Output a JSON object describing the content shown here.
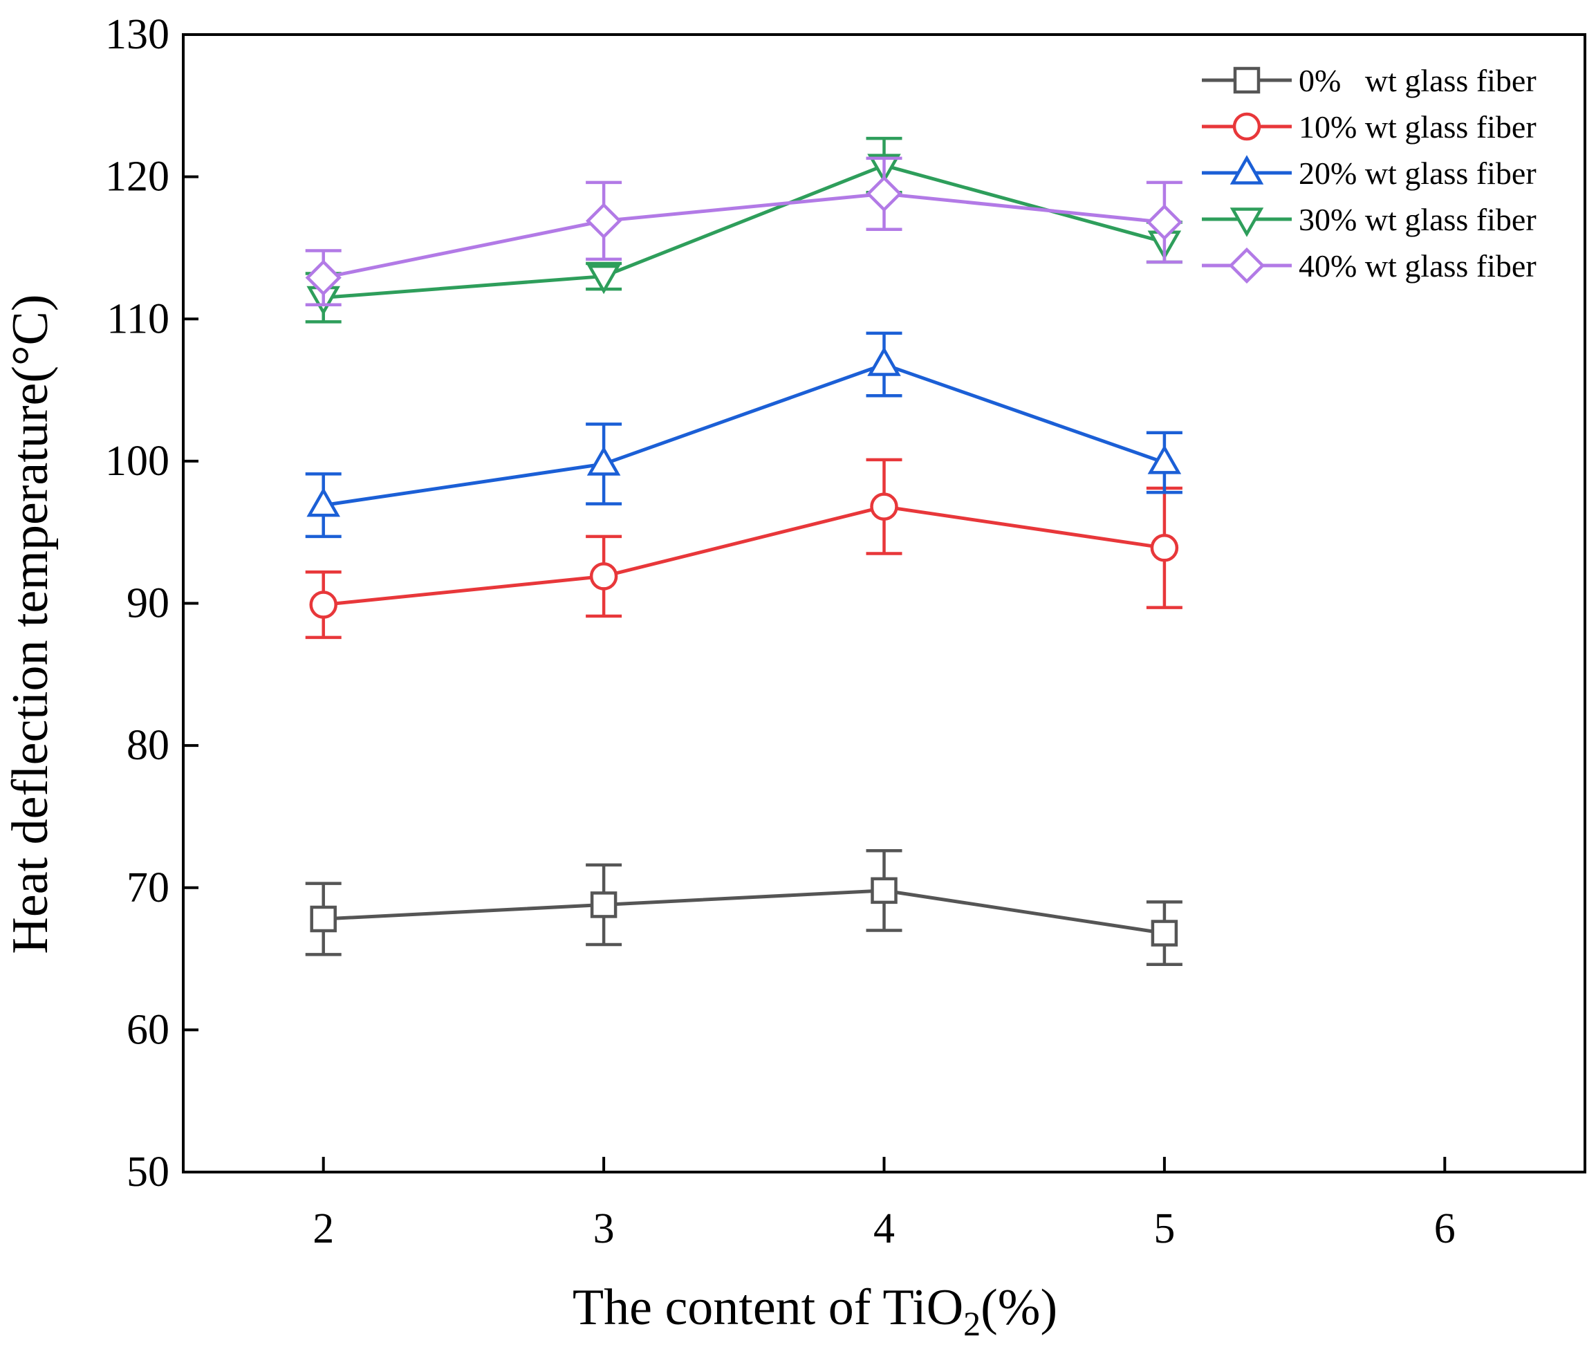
{
  "chart_data": {
    "type": "line",
    "title": "",
    "xlabel": "The content of TiO",
    "xlabel_sub": "2",
    "xlabel_suffix": "(%)",
    "ylabel": "Heat deflection temperature(°C)",
    "xlim": [
      1.5,
      6.5
    ],
    "ylim": [
      50,
      130
    ],
    "xticks": [
      2,
      3,
      4,
      5,
      6
    ],
    "yticks": [
      50,
      60,
      70,
      80,
      90,
      100,
      110,
      120,
      130
    ],
    "grid": false,
    "legend_position": "top-right",
    "x": [
      2,
      3,
      4,
      5
    ],
    "series": [
      {
        "name": "0%   wt glass fiber",
        "color": "#555555",
        "marker": "square",
        "values": [
          67.8,
          68.8,
          69.8,
          66.8
        ],
        "errors": [
          2.5,
          2.8,
          2.8,
          2.2
        ]
      },
      {
        "name": "10% wt glass fiber",
        "color": "#e8373a",
        "marker": "circle",
        "values": [
          89.9,
          91.9,
          96.8,
          93.9
        ],
        "errors": [
          2.3,
          2.8,
          3.3,
          4.2
        ]
      },
      {
        "name": "20% wt glass fiber",
        "color": "#1b5fd6",
        "marker": "triangle-up",
        "values": [
          96.9,
          99.8,
          106.8,
          99.9
        ],
        "errors": [
          2.2,
          2.8,
          2.2,
          2.1
        ]
      },
      {
        "name": "30% wt glass fiber",
        "color": "#2e9e5b",
        "marker": "triangle-down",
        "values": [
          111.5,
          113.0,
          120.8,
          115.4
        ],
        "errors": [
          1.7,
          0.9,
          1.9,
          1.4
        ]
      },
      {
        "name": "40% wt glass fiber",
        "color": "#b27ae6",
        "marker": "diamond",
        "values": [
          112.9,
          116.9,
          118.8,
          116.8
        ],
        "errors": [
          1.9,
          2.7,
          2.5,
          2.8
        ]
      }
    ]
  }
}
